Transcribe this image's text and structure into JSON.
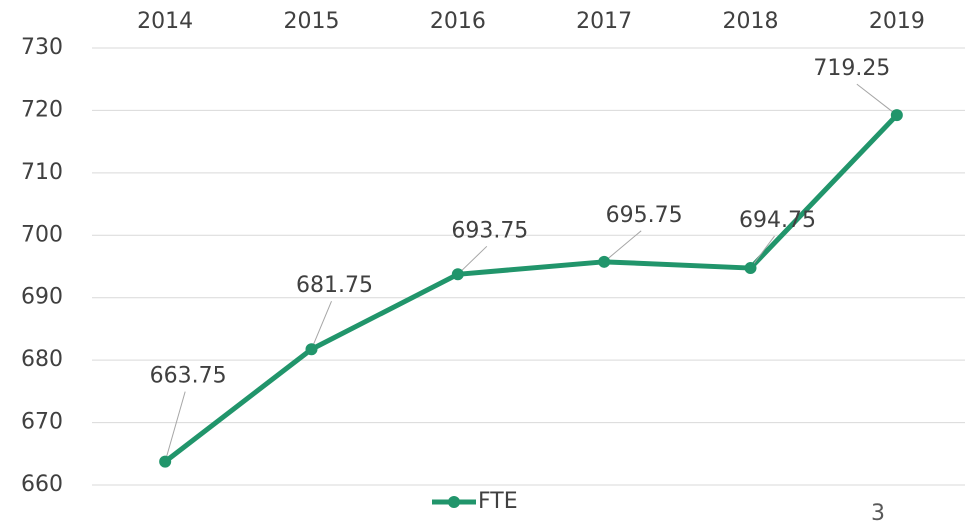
{
  "chart_data": {
    "type": "line",
    "categories": [
      "2014",
      "2015",
      "2016",
      "2017",
      "2018",
      "2019"
    ],
    "series": [
      {
        "name": "FTE",
        "color": "#21956b",
        "values": [
          663.75,
          681.75,
          693.75,
          695.75,
          694.75,
          719.25
        ]
      }
    ],
    "ylim": [
      660,
      730
    ],
    "yticks": [
      660,
      670,
      680,
      690,
      700,
      710,
      720,
      730
    ],
    "grid": true,
    "legend": "bottom"
  },
  "page_number": "3"
}
